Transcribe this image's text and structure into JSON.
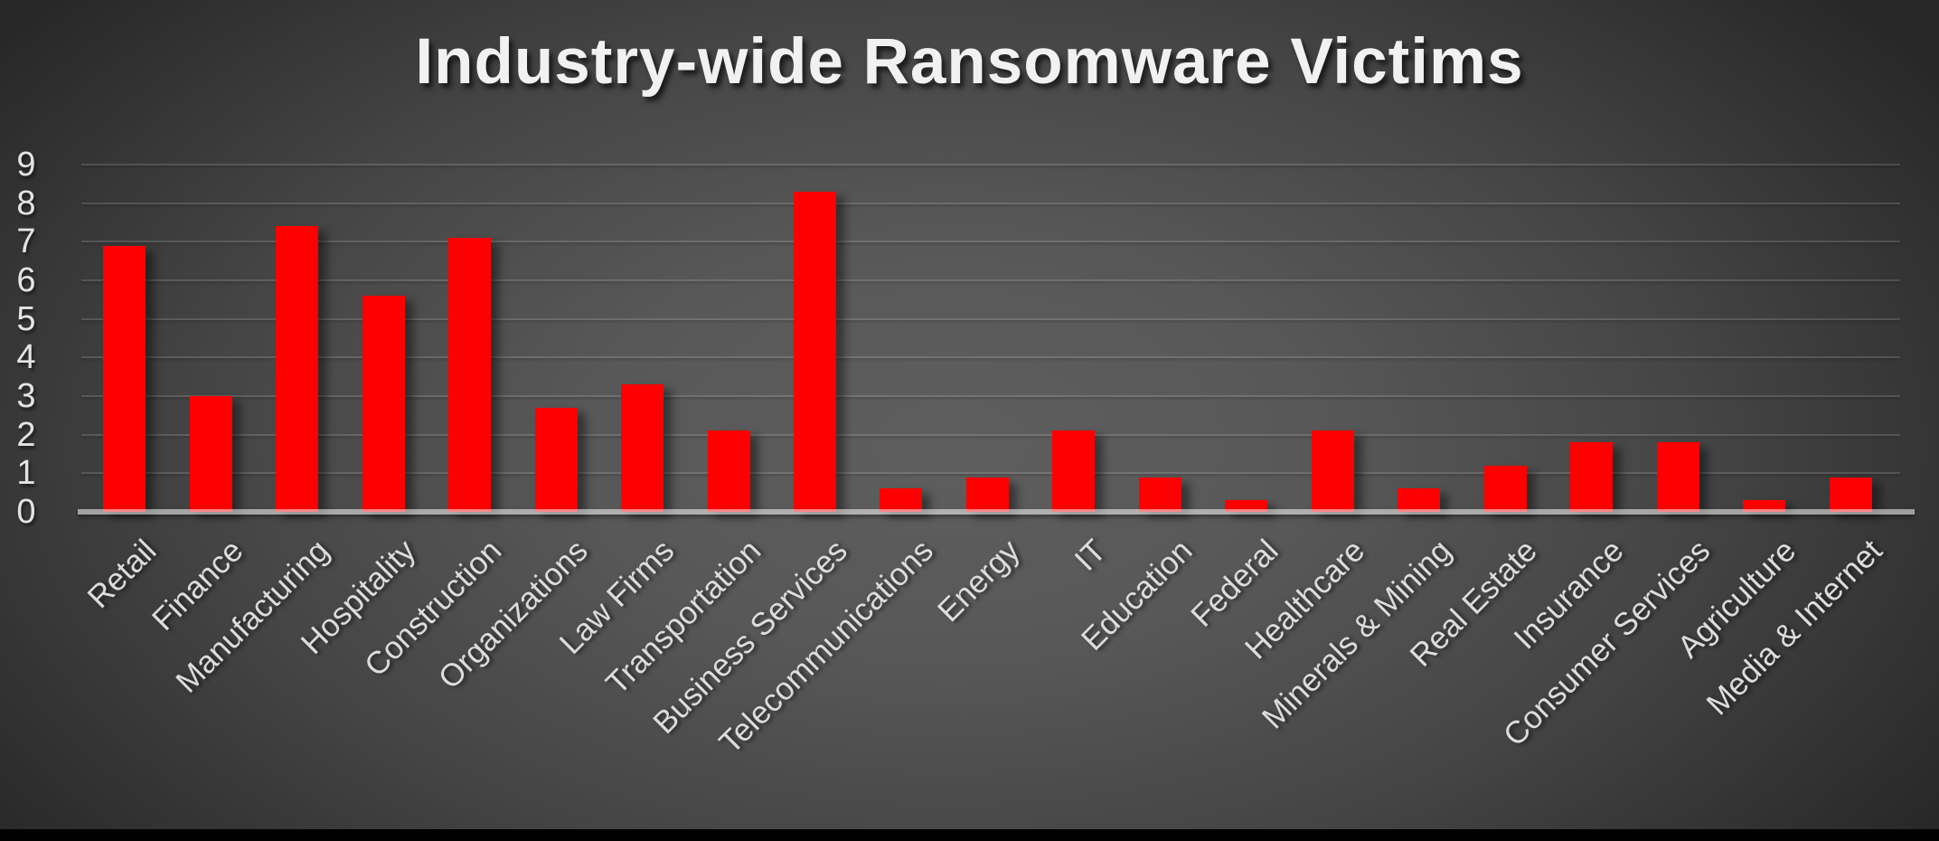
{
  "chart_data": {
    "type": "bar",
    "title": "Industry-wide Ransomware Victims",
    "categories": [
      "Retail",
      "Finance",
      "Manufacturing",
      "Hospitality",
      "Construction",
      "Organizations",
      "Law Firms",
      "Transportation",
      "Business Services",
      "Telecommunications",
      "Energy",
      "IT",
      "Education",
      "Federal",
      "Healthcare",
      "Minerals & Mining",
      "Real Estate",
      "Insurance",
      "Consumer Services",
      "Agriculture",
      "Media & Internet"
    ],
    "values": [
      6.9,
      3.0,
      7.4,
      5.6,
      7.1,
      2.7,
      3.3,
      2.1,
      8.3,
      0.6,
      0.9,
      2.1,
      0.9,
      0.3,
      2.1,
      0.6,
      1.2,
      1.8,
      1.8,
      0.3,
      0.9
    ],
    "xlabel": "",
    "ylabel": "",
    "ylim": [
      0,
      9
    ],
    "yticks": [
      0,
      1,
      2,
      3,
      4,
      5,
      6,
      7,
      8,
      9
    ],
    "grid": "horizontal",
    "legend": "none",
    "x_tick_rotation_degrees": 45,
    "bar_color": "#ff0000",
    "title_color": "#f1f1f1",
    "tick_label_color": "#dcdcdc",
    "axis_line_color": "#b5b5b5",
    "background_center_color": "#5e5e5e",
    "background_edge_color": "#272727",
    "bottom_strip_color": "#000000"
  }
}
